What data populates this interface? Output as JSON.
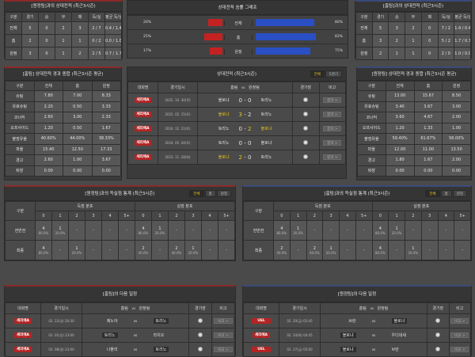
{
  "teams": {
    "home": "볼로냐",
    "away": "토리노"
  },
  "colors": {
    "accent_red": "#b52424",
    "accent_blue": "#2a4fc4",
    "highlight": "#e8c41a"
  },
  "record_left": {
    "title": "[원정팀]과의 상대전적 (최근3시즌)",
    "headers": [
      "구분",
      "경기",
      "승",
      "무",
      "패",
      "득/실",
      "평균 득/실"
    ],
    "rows": [
      [
        "전체",
        "5",
        "0",
        "2",
        "3",
        "2 / 7",
        "0.4 / 1.4"
      ],
      [
        "홈",
        "2",
        "0",
        "1",
        "1",
        "0 / 2",
        "0.0 / 1.0"
      ],
      [
        "원정",
        "3",
        "0",
        "1",
        "2",
        "2 / 5",
        "0.7 / 1.7"
      ]
    ]
  },
  "record_right": {
    "title": "[홈팀]과의 상대전적 (최근3시즌)",
    "headers": [
      "구분",
      "경기",
      "승",
      "무",
      "패",
      "득/실",
      "평균 득/실"
    ],
    "rows": [
      [
        "전체",
        "5",
        "3",
        "2",
        "0",
        "7 / 2",
        "1.4 / 0.4"
      ],
      [
        "홈",
        "3",
        "2",
        "1",
        "0",
        "5 / 2",
        "1.7 / 0.7"
      ],
      [
        "원정",
        "2",
        "1",
        "1",
        "0",
        "2 / 0",
        "1.0 / 0.0"
      ]
    ]
  },
  "win_graph": {
    "title": "상대전적 승률 그래프",
    "rows": [
      {
        "label": "전체",
        "left": "20%",
        "left_value": 20,
        "right": "80%",
        "right_value": 80
      },
      {
        "label": "홈",
        "left": "25%",
        "left_value": 25,
        "right": "83%",
        "right_value": 83
      },
      {
        "label": "원정",
        "left": "17%",
        "left_value": 17,
        "right": "75%",
        "right_value": 75
      }
    ]
  },
  "stats_left": {
    "title": "[홈팀] 상대전적 경과 종합 (최근3시즌 평균)",
    "headers": [
      "구분",
      "전체",
      "홈",
      "원정"
    ],
    "rows": [
      [
        "슈팅",
        "7.80",
        "7.00",
        "8.33"
      ],
      [
        "유효슈팅",
        "2.20",
        "0.50",
        "3.33"
      ],
      [
        "코너킥",
        "2.60",
        "3.00",
        "2.33"
      ],
      [
        "오프사이드",
        "1.20",
        "0.50",
        "1.67"
      ],
      [
        "볼점유율",
        "40.60%",
        "44.00%",
        "38.33%"
      ],
      [
        "파울",
        "15.40",
        "12.50",
        "17.33"
      ],
      [
        "경고",
        "2.60",
        "1.00",
        "3.67"
      ],
      [
        "퇴장",
        "0.00",
        "0.00",
        "0.00"
      ]
    ]
  },
  "stats_right": {
    "title": "[원정팀] 상대전적 경과 종합 (최근3시즌 평균)",
    "headers": [
      "구분",
      "전체",
      "홈",
      "원정"
    ],
    "rows": [
      [
        "슈팅",
        "13.00",
        "15.67",
        "8.50"
      ],
      [
        "유효슈팅",
        "3.40",
        "3.67",
        "3.00"
      ],
      [
        "코너킥",
        "3.60",
        "4.67",
        "2.00"
      ],
      [
        "오프사이드",
        "1.20",
        "1.33",
        "1.00"
      ],
      [
        "볼점유율",
        "59.40%",
        "61.67%",
        "56.00%"
      ],
      [
        "파울",
        "12.00",
        "11.00",
        "13.50"
      ],
      [
        "경고",
        "1.80",
        "1.67",
        "2.00"
      ],
      [
        "퇴장",
        "0.00",
        "0.00",
        "0.00"
      ]
    ]
  },
  "h2h": {
    "title": "상대전적 (최근3시즌)",
    "toggle": [
      "전체",
      "5경기"
    ],
    "headers": [
      "대회명",
      "경기일시",
      "홈팀",
      "vs",
      "원정팀",
      "경기장",
      "비고"
    ],
    "rows": [
      {
        "league": "세리에A",
        "date": "2025. 10. 30(목)",
        "home": "볼로냐",
        "hs": "0",
        "as": "0",
        "away": "토리노",
        "winner": "none",
        "btn": "결과 >"
      },
      {
        "league": "세리에A",
        "date": "2025. 02. 15(토)",
        "home": "볼로냐",
        "hs": "3",
        "as": "2",
        "away": "토리노",
        "winner": "home",
        "btn": "결과 >"
      },
      {
        "league": "세리에A",
        "date": "2024. 12. 21(토)",
        "home": "토리노",
        "hs": "0",
        "as": "2",
        "away": "볼로냐",
        "winner": "away",
        "btn": "결과 >"
      },
      {
        "league": "세리에A",
        "date": "2024. 05. 04(토)",
        "home": "토리노",
        "hs": "0",
        "as": "0",
        "away": "볼로냐",
        "winner": "none",
        "btn": "결과 >"
      },
      {
        "league": "세리에A",
        "date": "2023. 11. 28(화)",
        "home": "볼로냐",
        "hs": "2",
        "as": "0",
        "away": "토리노",
        "winner": "home",
        "btn": "결과 >"
      }
    ]
  },
  "goals_left": {
    "title": "[원정팀]과의 득실점 통계 (최근3시즌)",
    "toggle": [
      "전체",
      "홈",
      "원정"
    ],
    "col_label": "구분",
    "scored": "득점 분포",
    "conceded": "실점 분포",
    "buckets": [
      "0",
      "1",
      "2",
      "3",
      "4",
      "5+"
    ],
    "rows": [
      {
        "label": "전반전",
        "cells": [
          [
            "4",
            "80.0%"
          ],
          [
            "1",
            "20.0%"
          ],
          [
            "-"
          ],
          [
            "-"
          ],
          [
            "-"
          ],
          [
            "-"
          ],
          [
            "4",
            "80.0%"
          ],
          [
            "1",
            "20.0%"
          ],
          [
            "-"
          ],
          [
            "-"
          ],
          [
            "-"
          ],
          [
            "-"
          ]
        ]
      },
      {
        "label": "최종",
        "cells": [
          [
            "4",
            "80.0%"
          ],
          [
            "-"
          ],
          [
            "1",
            "20.0%"
          ],
          [
            "-"
          ],
          [
            "-"
          ],
          [
            "-"
          ],
          [
            "2",
            "40.0%"
          ],
          [
            "-"
          ],
          [
            "2",
            "40.0%"
          ],
          [
            "1",
            "20.0%"
          ],
          [
            "-"
          ],
          [
            "-"
          ]
        ]
      }
    ]
  },
  "goals_right": {
    "title": "[홈팀]과의 득실점 통계 (최근3시즌)",
    "toggle": [
      "전체",
      "홈",
      "원정"
    ],
    "col_label": "구분",
    "scored": "득점 분포",
    "conceded": "실점 분포",
    "buckets": [
      "0",
      "1",
      "2",
      "3",
      "4",
      "5+"
    ],
    "rows": [
      {
        "label": "전반전",
        "cells": [
          [
            "4",
            "80.0%"
          ],
          [
            "1",
            "20.0%"
          ],
          [
            "-"
          ],
          [
            "-"
          ],
          [
            "-"
          ],
          [
            "-"
          ],
          [
            "4",
            "80.0%"
          ],
          [
            "1",
            "20.0%"
          ],
          [
            "-"
          ],
          [
            "-"
          ],
          [
            "-"
          ],
          [
            "-"
          ]
        ]
      },
      {
        "label": "최종",
        "cells": [
          [
            "2",
            "40.0%"
          ],
          [
            "-"
          ],
          [
            "2",
            "40.0%"
          ],
          [
            "1",
            "20.0%"
          ],
          [
            "-"
          ],
          [
            "-"
          ],
          [
            "4",
            "80.0%"
          ],
          [
            "-"
          ],
          [
            "1",
            "20.0%"
          ],
          [
            "-"
          ],
          [
            "-"
          ],
          [
            "-"
          ]
        ]
      }
    ]
  },
  "next_left": {
    "title": "[홈팀]의 다음 일정",
    "headers": [
      "대회명",
      "경기일시",
      "홈팀",
      "vs",
      "원정팀",
      "경기장",
      "비고"
    ],
    "rows": [
      {
        "league": "세리에A",
        "date": "02. 22(일) 20:30",
        "home": "제노아",
        "away": "토리노",
        "hl": "away",
        "btn": "비교 >"
      },
      {
        "league": "세리에A",
        "date": "03. 01(일) 23:00",
        "home": "토리노",
        "away": "라치오",
        "hl": "home",
        "btn": "비교 >"
      },
      {
        "league": "세리에A",
        "date": "03. 08(일) 23:00",
        "home": "나폴리",
        "away": "토리노",
        "hl": "away",
        "btn": "비교 >"
      }
    ]
  },
  "next_right": {
    "title": "[원정팀]의 다음 일정",
    "headers": [
      "대회명",
      "경기일시",
      "홈팀",
      "vs",
      "원정팀",
      "경기장",
      "비고"
    ],
    "rows": [
      {
        "league": "UEL",
        "date": "02. 20(금) 02:45",
        "home": "브란",
        "away": "볼로냐",
        "hl": "away",
        "btn": "비교 >"
      },
      {
        "league": "세리에A",
        "date": "02. 24(화) 04:45",
        "home": "볼로냐",
        "away": "우디네세",
        "hl": "home",
        "btn": "비교 >"
      },
      {
        "league": "UEL",
        "date": "02. 27(금) 05:00",
        "home": "볼로냐",
        "away": "브란",
        "hl": "home",
        "btn": "비교 >"
      }
    ]
  }
}
